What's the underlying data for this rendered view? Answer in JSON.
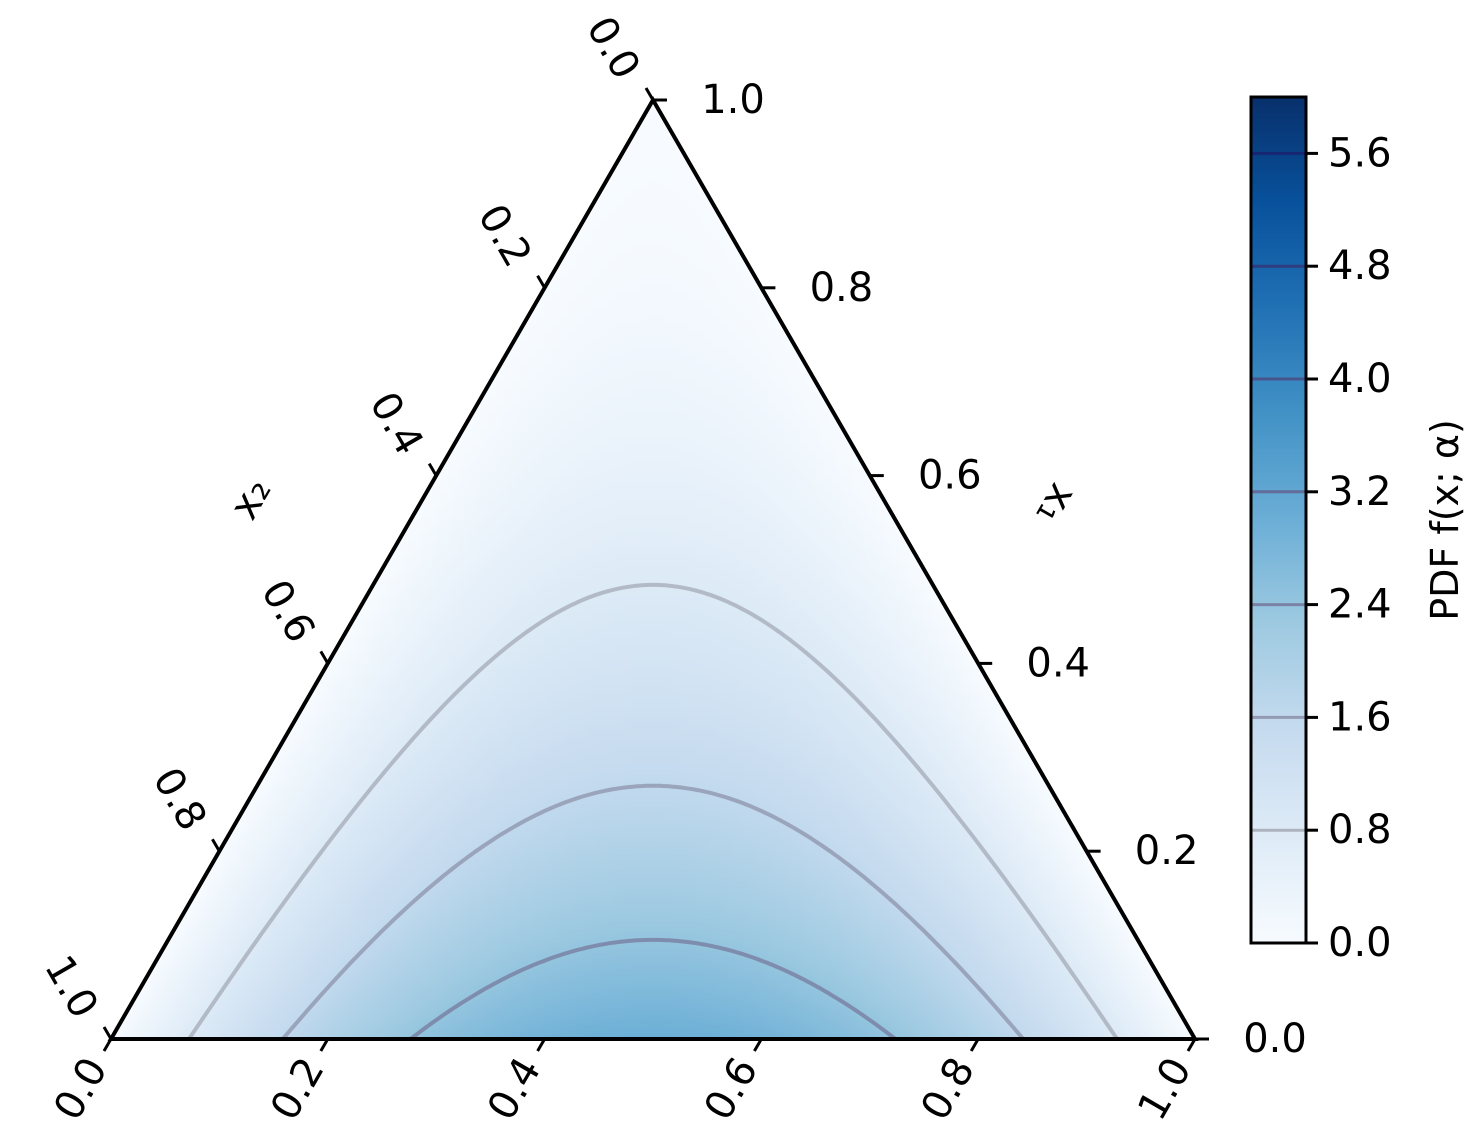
{
  "chart_data": {
    "type": "ternary-contour",
    "title": "",
    "axes": {
      "bottom": {
        "label": "",
        "ticks": [
          "0.0",
          "0.2",
          "0.4",
          "0.6",
          "0.8",
          "1.0"
        ],
        "range": [
          0,
          1
        ]
      },
      "right": {
        "label": "x₁",
        "ticks": [
          "0.0",
          "0.2",
          "0.4",
          "0.6",
          "0.8",
          "1.0"
        ],
        "range": [
          0,
          1
        ]
      },
      "left": {
        "label": "x₂",
        "ticks": [
          "0.0",
          "0.2",
          "0.4",
          "0.6",
          "0.8",
          "1.0"
        ],
        "range": [
          0,
          1
        ]
      }
    },
    "contour_levels": [
      0.8,
      1.6,
      2.4,
      3.2,
      4.0,
      4.8,
      5.6
    ],
    "colorbar": {
      "label": "PDF f(x; α)",
      "ticks": [
        "0.0",
        "0.8",
        "1.6",
        "2.4",
        "3.2",
        "4.0",
        "4.8",
        "5.6"
      ],
      "range": [
        0,
        6.0
      ],
      "colormap": "Blues",
      "colors": [
        "#f7fbff",
        "#deebf7",
        "#c6dbef",
        "#9ecae1",
        "#6baed6",
        "#4292c6",
        "#2171b5",
        "#08519c",
        "#08306b"
      ]
    },
    "grid": false
  }
}
